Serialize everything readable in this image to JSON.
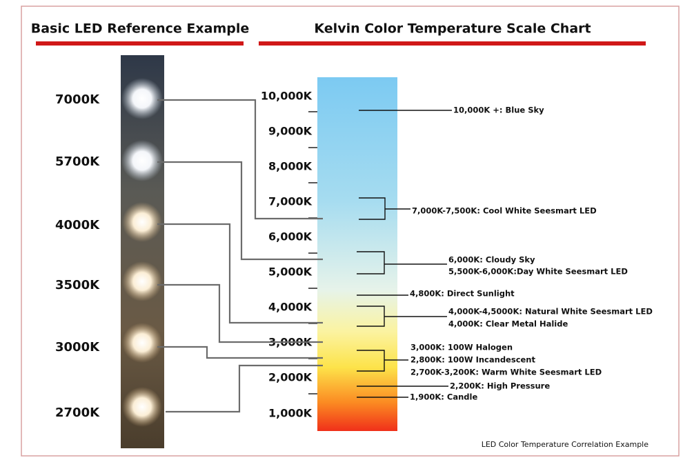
{
  "left_title": "Basic LED Reference Example",
  "right_title": "Kelvin Color Temperature Scale Chart",
  "led_labels": [
    "7000K",
    "5700K",
    "4000K",
    "3500K",
    "3000K",
    "2700K"
  ],
  "scale_labels": [
    "10,000K",
    "9,000K",
    "8,000K",
    "7,000K",
    "6,000K",
    "5,000K",
    "4,000K",
    "3,000K",
    "2,000K",
    "1,000K"
  ],
  "annotations": [
    "10,000K +: Blue Sky",
    "7,000K-7,500K: Cool White Seesmart LED",
    "6,000K: Cloudy Sky",
    "5,500K-6,000K:Day White Seesmart LED",
    "4,800K: Direct Sunlight",
    "4,000K-4,5000K: Natural White Seesmart LED",
    "4,000K: Clear Metal Halide",
    "3,000K: 100W Halogen",
    "2,800K: 100W Incandescent",
    "2,700K-3,200K: Warm White Seesmart LED",
    "2,200K: High Pressure",
    "1,900K: Candle"
  ],
  "footer": "LED Color Temperature Correlation Example"
}
